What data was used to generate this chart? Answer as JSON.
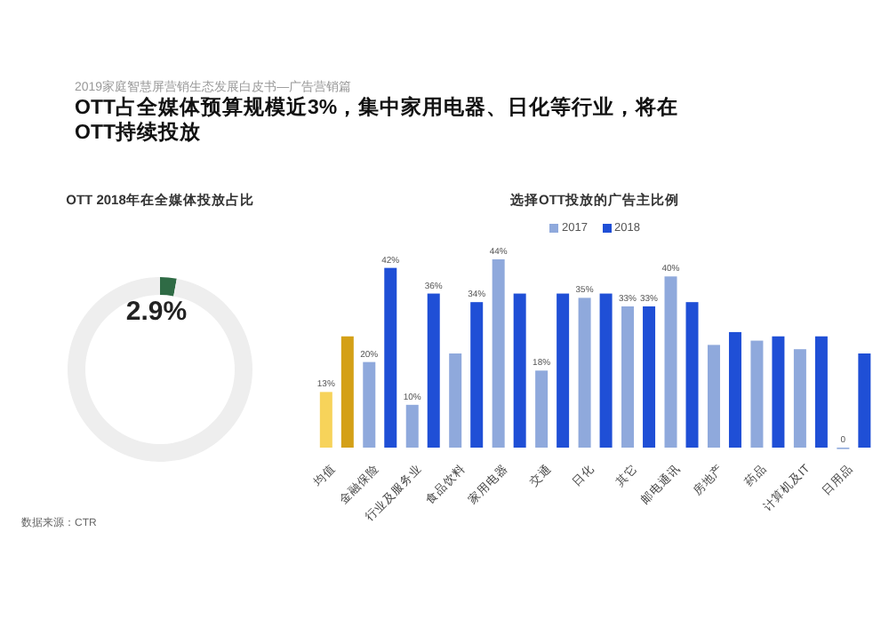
{
  "chart_data": [
    {
      "type": "other",
      "title": "OTT占全媒体预算规模近3%，集中家用电器、日化等行业，将在OTT持续投放",
      "subtitle": "2019家庭智慧屏营销生态发展白皮书—广告营销篇",
      "annotations": [
        "数据来源：CTR"
      ]
    },
    {
      "type": "donut",
      "title": "OTT 2018年在全媒体投放占比",
      "categories": [
        null,
        null
      ],
      "values": [
        2.9,
        97.1
      ],
      "colors": [
        "#2f6b45",
        "#eeeeee"
      ],
      "value_labels": [
        "2.9%",
        null
      ]
    },
    {
      "type": "bar",
      "title": "选择OTT投放的广告主比例",
      "legend": "top",
      "categories": [
        "均值",
        "金融保险",
        "行业及服务业",
        "食品饮料",
        "家用电器",
        "交通",
        "日化",
        "其它",
        "邮电通讯",
        "房地产",
        "药品",
        "计算机及IT",
        "日用品"
      ],
      "series": [
        {
          "name": "2017",
          "color": "#8fa9dc",
          "colors": [
            "#f7d35a",
            "#8fa9dc",
            "#8fa9dc",
            "#8fa9dc",
            "#8fa9dc",
            "#8fa9dc",
            "#8fa9dc",
            "#8fa9dc",
            "#8fa9dc",
            "#8fa9dc",
            "#8fa9dc",
            "#8fa9dc",
            "#8fa9dc"
          ],
          "values": [
            13,
            20,
            10,
            22,
            44,
            18,
            35,
            33,
            40,
            24,
            25,
            23,
            0
          ],
          "value_labels": [
            "13%",
            "20%",
            "10%",
            null,
            "44%",
            "18%",
            "35%",
            "33%",
            "40%",
            null,
            null,
            null,
            "0"
          ]
        },
        {
          "name": "2018",
          "color": "#1f4fd6",
          "colors": [
            "#d4a017",
            "#1f4fd6",
            "#1f4fd6",
            "#1f4fd6",
            "#1f4fd6",
            "#1f4fd6",
            "#1f4fd6",
            "#1f4fd6",
            "#1f4fd6",
            "#1f4fd6",
            "#1f4fd6",
            "#1f4fd6",
            "#1f4fd6"
          ],
          "values": [
            26,
            42,
            36,
            34,
            36,
            36,
            36,
            33,
            34,
            27,
            26,
            26,
            22
          ],
          "value_labels": [
            null,
            "42%",
            "36%",
            "34%",
            null,
            null,
            null,
            "33%",
            null,
            null,
            null,
            null,
            null
          ]
        }
      ]
    }
  ]
}
